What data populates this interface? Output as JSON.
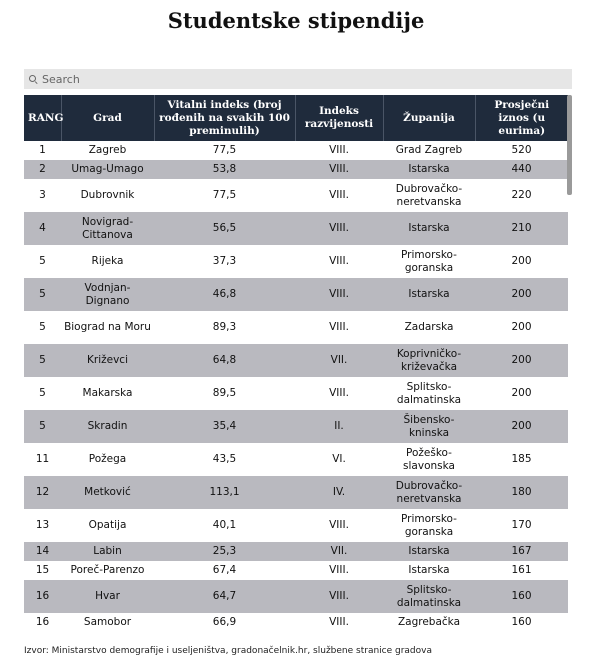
{
  "title": "Studentske stipendije",
  "search": {
    "placeholder": "Search",
    "value": ""
  },
  "table": {
    "headers": {
      "rank": "RANG",
      "city": "Grad",
      "vital": "Vitalni indeks (broj rođenih na svakih 100 preminulih)",
      "dev": "Indeks razvijenosti",
      "county": "Županija",
      "avg": "Prosječni iznos (u eurima)"
    },
    "rows": [
      {
        "rank": "1",
        "city": "Zagreb",
        "vital": "77,5",
        "dev": "VIII.",
        "county": "Grad Zagreb",
        "avg": "520"
      },
      {
        "rank": "2",
        "city": "Umag-Umago",
        "vital": "53,8",
        "dev": "VIII.",
        "county": "Istarska",
        "avg": "440"
      },
      {
        "rank": "3",
        "city": "Dubrovnik",
        "vital": "77,5",
        "dev": "VIII.",
        "county": "Dubrovačko-neretvanska",
        "avg": "220"
      },
      {
        "rank": "4",
        "city": "Novigrad-Cittanova",
        "vital": "56,5",
        "dev": "VIII.",
        "county": "Istarska",
        "avg": "210"
      },
      {
        "rank": "5",
        "city": "Rijeka",
        "vital": "37,3",
        "dev": "VIII.",
        "county": "Primorsko-goranska",
        "avg": "200"
      },
      {
        "rank": "5",
        "city": "Vodnjan-Dignano",
        "vital": "46,8",
        "dev": "VIII.",
        "county": "Istarska",
        "avg": "200"
      },
      {
        "rank": "5",
        "city": "Biograd na Moru",
        "vital": "89,3",
        "dev": "VIII.",
        "county": "Zadarska",
        "avg": "200"
      },
      {
        "rank": "5",
        "city": "Križevci",
        "vital": "64,8",
        "dev": "VII.",
        "county": "Koprivničko-križevačka",
        "avg": "200"
      },
      {
        "rank": "5",
        "city": "Makarska",
        "vital": "89,5",
        "dev": "VIII.",
        "county": "Splitsko-dalmatinska",
        "avg": "200"
      },
      {
        "rank": "5",
        "city": "Skradin",
        "vital": "35,4",
        "dev": "II.",
        "county": "Šibensko-kninska",
        "avg": "200"
      },
      {
        "rank": "11",
        "city": "Požega",
        "vital": "43,5",
        "dev": "VI.",
        "county": "Požeško-slavonska",
        "avg": "185"
      },
      {
        "rank": "12",
        "city": "Metković",
        "vital": "113,1",
        "dev": "IV.",
        "county": "Dubrovačko-neretvanska",
        "avg": "180"
      },
      {
        "rank": "13",
        "city": "Opatija",
        "vital": "40,1",
        "dev": "VIII.",
        "county": "Primorsko-goranska",
        "avg": "170"
      },
      {
        "rank": "14",
        "city": "Labin",
        "vital": "25,3",
        "dev": "VII.",
        "county": "Istarska",
        "avg": "167"
      },
      {
        "rank": "15",
        "city": "Poreč-Parenzo",
        "vital": "67,4",
        "dev": "VIII.",
        "county": "Istarska",
        "avg": "161"
      },
      {
        "rank": "16",
        "city": "Hvar",
        "vital": "64,7",
        "dev": "VIII.",
        "county": "Splitsko-dalmatinska",
        "avg": "160"
      },
      {
        "rank": "16",
        "city": "Samobor",
        "vital": "66,9",
        "dev": "VIII.",
        "county": "Zagrebačka",
        "avg": "160"
      }
    ]
  },
  "source": "Izvor: Ministarstvo demografije i useljeništva, gradonačelnik.hr, službene stranice gradova",
  "colors": {
    "header_bg": "#1f2b3c",
    "stripe": "#b9b9bf",
    "search_bg": "#e6e6e6"
  }
}
